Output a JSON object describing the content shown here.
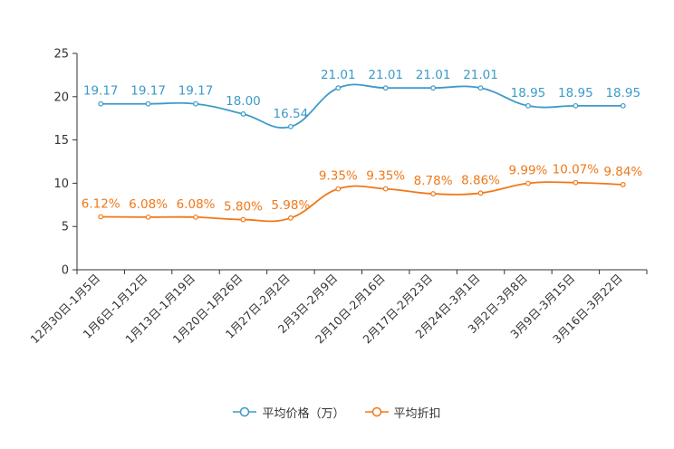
{
  "chart_data": {
    "type": "line",
    "categories": [
      "12月30日-1月5日",
      "1月6日-1月12日",
      "1月13日-1月19日",
      "1月20日-1月26日",
      "1月27日-2月2日",
      "2月3日-2月9日",
      "2月10日-2月16日",
      "2月17日-2月23日",
      "2月24日-3月1日",
      "3月2日-3月8日",
      "3月9日-3月15日",
      "3月16日-3月22日"
    ],
    "series": [
      {
        "name": "平均价格（万）",
        "color": "#3d9ac9",
        "values": [
          19.17,
          19.17,
          19.17,
          18.0,
          16.54,
          21.01,
          21.01,
          21.01,
          21.01,
          18.95,
          18.95,
          18.95
        ],
        "labels": [
          "19.17",
          "19.17",
          "19.17",
          "18.00",
          "16.54",
          "21.01",
          "21.01",
          "21.01",
          "21.01",
          "18.95",
          "18.95",
          "18.95"
        ]
      },
      {
        "name": "平均折扣",
        "color": "#f07818",
        "values": [
          6.12,
          6.08,
          6.08,
          5.8,
          5.98,
          9.35,
          9.35,
          8.78,
          8.86,
          9.99,
          10.07,
          9.84
        ],
        "labels": [
          "6.12%",
          "6.08%",
          "6.08%",
          "5.80%",
          "5.98%",
          "9.35%",
          "9.35%",
          "8.78%",
          "8.86%",
          "9.99%",
          "10.07%",
          "9.84%"
        ]
      }
    ],
    "ylim": [
      0,
      25
    ],
    "yticks": [
      0,
      5,
      10,
      15,
      20,
      25
    ],
    "title": "",
    "xlabel": "",
    "ylabel": "",
    "legend_position": "bottom"
  }
}
